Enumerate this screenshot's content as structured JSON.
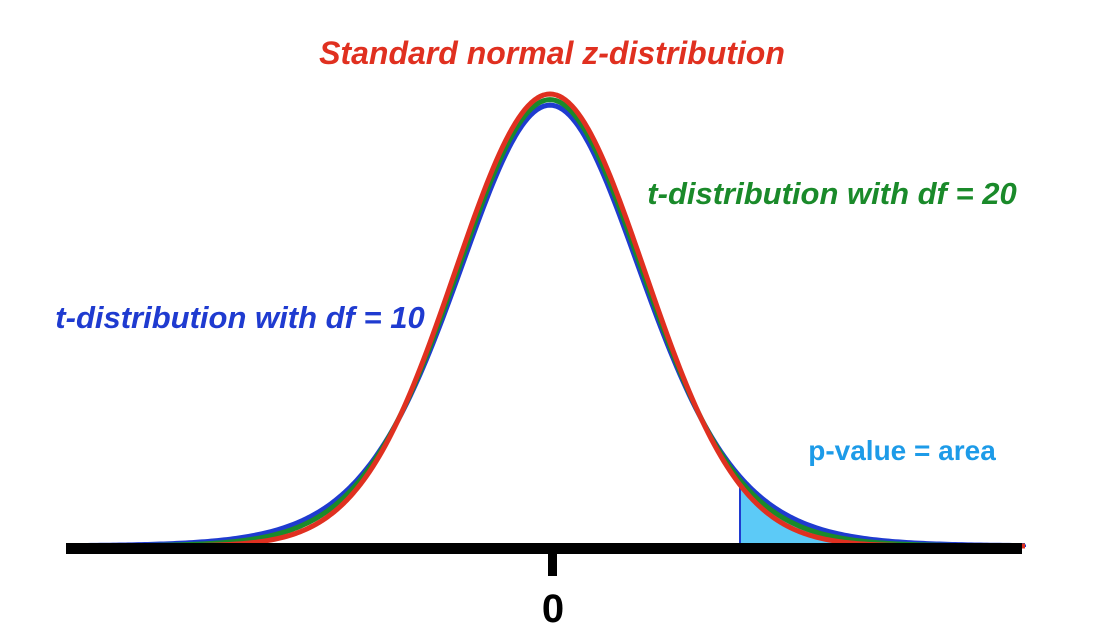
{
  "labels": {
    "z": "Standard normal z-distribution",
    "t20": "t-distribution with df = 20",
    "t10": "t-distribution with df = 10",
    "pvalue": "p-value = area",
    "zero": "0"
  },
  "curves": [
    {
      "id": "z",
      "df": null,
      "color": "#e03020"
    },
    {
      "id": "t20",
      "df": 20,
      "color": "#1a8a2a"
    },
    {
      "id": "t10",
      "df": 10,
      "color": "#1f3bd0"
    }
  ],
  "shaded_region": {
    "curve": "t10",
    "from_t": 2,
    "color": "#5ccaf7"
  },
  "colors": {
    "axis": "#000000",
    "z": "#e03020",
    "t20": "#1a8a2a",
    "t10": "#1f3bd0",
    "pvalue": "#1d9be8"
  }
}
